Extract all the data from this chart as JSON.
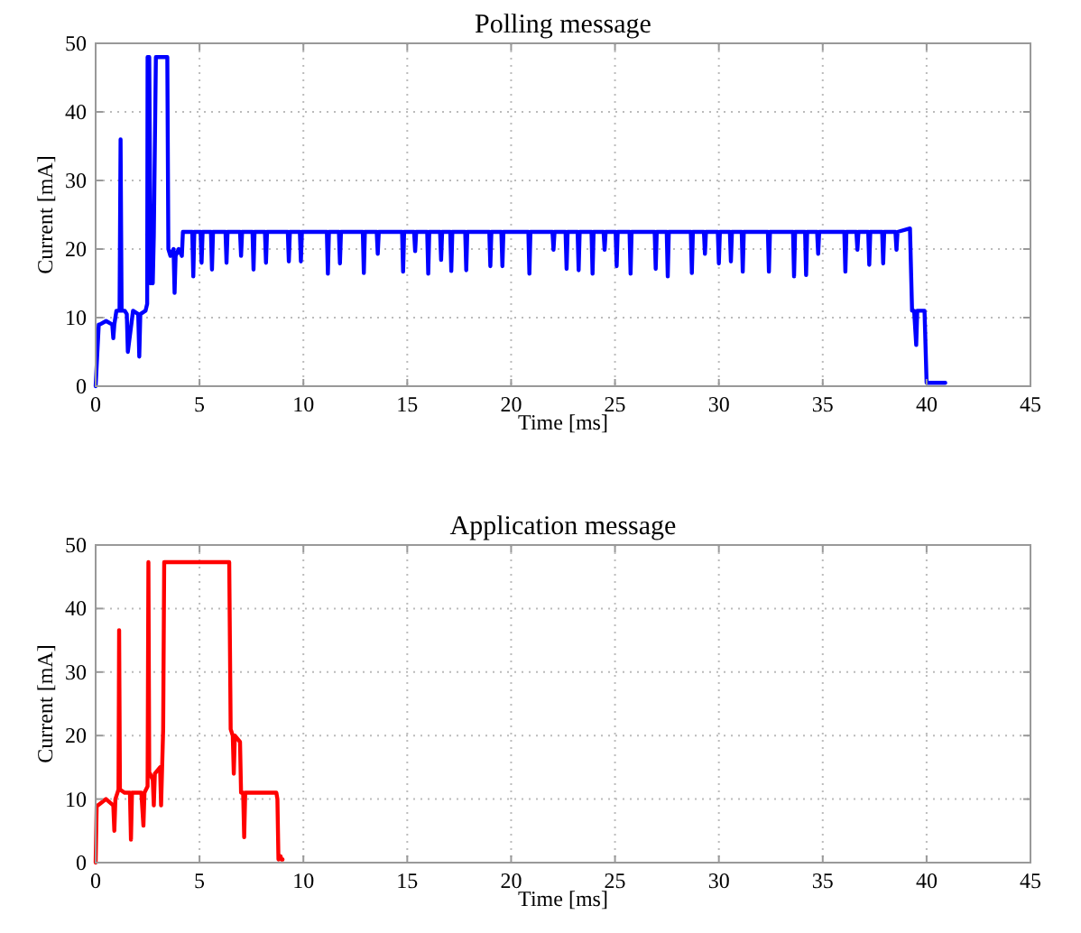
{
  "chart_data": [
    {
      "type": "line",
      "title": "Polling message",
      "xlabel": "Time [ms]",
      "ylabel": "Current [mA]",
      "xlim": [
        0,
        45
      ],
      "xticks": [
        0,
        5,
        10,
        15,
        20,
        25,
        30,
        35,
        40,
        45
      ],
      "ylim": [
        0,
        50
      ],
      "yticks": [
        0,
        10,
        20,
        30,
        40,
        50
      ],
      "grid": true,
      "line_style": "solid",
      "series": [
        {
          "color": "#0000ff",
          "x": [
            0,
            0.15,
            0.2,
            0.5,
            0.8,
            0.85,
            0.9,
            1.0,
            1.15,
            1.2,
            1.25,
            1.4,
            1.5,
            1.55,
            1.8,
            2.05,
            2.1,
            2.15,
            2.4,
            2.48,
            2.5,
            2.58,
            2.65,
            2.7,
            2.75,
            2.8,
            2.9,
            3.45,
            3.5,
            3.6,
            3.75,
            3.8,
            3.85,
            4.0,
            4.15,
            4.2,
            4.65,
            4.7,
            4.75,
            5.05,
            5.1,
            5.15,
            5.55,
            5.6,
            5.65,
            6.25,
            6.3,
            6.35,
            6.95,
            7.0,
            7.05,
            7.55,
            7.6,
            7.65,
            8.15,
            8.2,
            8.25,
            9.25,
            9.3,
            9.35,
            9.83,
            9.88,
            9.93,
            11.13,
            11.18,
            11.23,
            11.71,
            11.76,
            11.81,
            12.86,
            12.91,
            12.96,
            13.53,
            13.58,
            13.63,
            14.75,
            14.8,
            14.85,
            15.33,
            15.38,
            15.43,
            15.96,
            16.01,
            16.06,
            16.58,
            16.63,
            16.68,
            17.07,
            17.12,
            17.17,
            17.79,
            17.84,
            17.89,
            18.95,
            19.0,
            19.05,
            19.53,
            19.58,
            19.63,
            20.83,
            20.88,
            20.93,
            21.99,
            22.04,
            22.09,
            22.62,
            22.67,
            22.72,
            23.2,
            23.25,
            23.3,
            23.87,
            23.92,
            23.97,
            24.45,
            24.5,
            24.55,
            25.03,
            25.08,
            25.13,
            25.7,
            25.75,
            25.8,
            26.91,
            26.96,
            27.01,
            27.49,
            27.54,
            27.59,
            28.65,
            28.7,
            28.75,
            29.28,
            29.33,
            29.38,
            29.95,
            30.0,
            30.05,
            30.53,
            30.58,
            30.63,
            31.1,
            31.15,
            31.2,
            32.36,
            32.41,
            32.46,
            33.57,
            33.62,
            33.67,
            34.15,
            34.2,
            34.25,
            34.73,
            34.78,
            34.83,
            36.04,
            36.09,
            36.14,
            36.62,
            36.67,
            36.72,
            37.19,
            37.24,
            37.29,
            37.86,
            37.91,
            37.96,
            38.5,
            38.55,
            38.6,
            39.2,
            39.3,
            39.4,
            39.5,
            39.55,
            39.6,
            39.9,
            40.0,
            40.1,
            40.9
          ],
          "values": [
            0,
            9,
            9,
            9.5,
            9,
            7,
            9,
            11,
            11,
            36,
            11,
            11,
            10.5,
            5,
            11,
            10.5,
            4.3,
            10.5,
            11,
            12,
            48,
            48,
            15,
            26,
            15,
            22,
            48,
            48,
            20,
            19,
            20,
            13.6,
            19,
            20,
            19,
            22.5,
            22.5,
            16,
            22.5,
            22.5,
            18,
            22.5,
            22.5,
            17,
            22.5,
            22.5,
            18,
            22.5,
            22.5,
            19,
            22.5,
            22.5,
            17,
            22.5,
            22.5,
            18,
            22.5,
            22.5,
            18.2,
            22.5,
            22.5,
            18.2,
            22.5,
            22.5,
            16.4,
            22.5,
            22.5,
            17.9,
            22.5,
            22.5,
            16.5,
            22.5,
            22.5,
            19.3,
            22.5,
            22.5,
            16.7,
            22.5,
            22.5,
            19.7,
            22.5,
            22.5,
            16.4,
            22.5,
            22.5,
            18.4,
            22.5,
            22.5,
            16.8,
            22.5,
            22.5,
            16.9,
            22.5,
            22.5,
            17.5,
            22.5,
            22.5,
            17.5,
            22.5,
            22.5,
            16.4,
            22.5,
            22.5,
            19.9,
            22.5,
            22.5,
            17.1,
            22.5,
            22.5,
            16.9,
            22.5,
            22.5,
            16.4,
            22.5,
            22.5,
            19.9,
            22.5,
            22.5,
            17.5,
            22.5,
            22.5,
            16.4,
            22.5,
            22.5,
            17.1,
            22.5,
            22.5,
            16.0,
            22.5,
            22.5,
            16.5,
            22.5,
            22.5,
            19.3,
            22.5,
            22.5,
            17.9,
            22.5,
            22.5,
            18.2,
            22.5,
            22.5,
            16.7,
            22.5,
            22.5,
            16.7,
            22.5,
            22.5,
            16.0,
            22.5,
            22.5,
            16.2,
            22.5,
            22.5,
            19.3,
            22.5,
            22.5,
            16.7,
            22.5,
            22.5,
            19.9,
            22.5,
            22.5,
            17.7,
            22.5,
            22.5,
            17.9,
            22.5,
            22.5,
            19.9,
            22.5,
            23,
            11,
            11,
            6,
            11,
            11,
            11,
            0.5,
            0.5,
            0.5
          ]
        }
      ]
    },
    {
      "type": "line",
      "title": "Application message",
      "xlabel": "Time [ms]",
      "ylabel": "Current [mA]",
      "xlim": [
        0,
        45
      ],
      "xticks": [
        0,
        5,
        10,
        15,
        20,
        25,
        30,
        35,
        40,
        45
      ],
      "ylim": [
        0,
        50
      ],
      "yticks": [
        0,
        10,
        20,
        30,
        40,
        50
      ],
      "grid": true,
      "line_style": "solid",
      "series": [
        {
          "color": "#ff0000",
          "x": [
            0,
            0.05,
            0.1,
            0.5,
            0.85,
            0.9,
            0.95,
            1.05,
            1.1,
            1.13,
            1.17,
            1.4,
            1.65,
            1.7,
            1.75,
            2.2,
            2.3,
            2.35,
            2.5,
            2.54,
            2.58,
            2.62,
            2.75,
            2.8,
            2.85,
            3.1,
            3.15,
            3.2,
            3.25,
            3.3,
            6.43,
            6.5,
            6.6,
            6.65,
            6.7,
            6.95,
            7.0,
            7.1,
            7.15,
            7.2,
            7.5,
            8.0,
            8.7,
            8.75,
            8.8,
            8.9,
            8.95,
            9.0
          ],
          "values": [
            0,
            9,
            9,
            10,
            9,
            5,
            10,
            11,
            11.5,
            36.6,
            11.5,
            11,
            11,
            3.6,
            11,
            11,
            5.8,
            11,
            12,
            47.3,
            14,
            14,
            13,
            9,
            14,
            15,
            9,
            15,
            21,
            47.3,
            47.3,
            21,
            20,
            14,
            20,
            19,
            11,
            11,
            4,
            11,
            11,
            11,
            11,
            10,
            0.5,
            1,
            0.5,
            0.5
          ]
        }
      ]
    }
  ]
}
